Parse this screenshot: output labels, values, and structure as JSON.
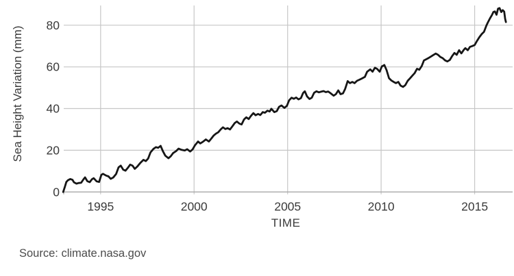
{
  "chart_data": {
    "type": "line",
    "title": "",
    "xlabel": "TIME",
    "ylabel": "Sea Height Variation (mm)",
    "source": "Source: climate.nasa.gov",
    "xlim": [
      1993.03,
      2017.03
    ],
    "ylim": [
      0,
      89.45
    ],
    "x_ticks": [
      1995,
      2000,
      2005,
      2010,
      2015
    ],
    "x_tick_labels": [
      "1995",
      "2000",
      "2005",
      "2010",
      "2015"
    ],
    "y_ticks": [
      0,
      20,
      40,
      60,
      80
    ],
    "y_tick_labels": [
      "0",
      "20",
      "40",
      "60",
      "80"
    ],
    "grid": true,
    "legend_position": "none",
    "colors": {
      "line": "#161616",
      "grid": "#c6c6c6",
      "axis": "#a8a8a8",
      "text": "#3a3a3a",
      "background": "#ffffff"
    },
    "series": [
      {
        "name": "Sea Height Variation (mm)",
        "x": [
          1993.0,
          1993.08,
          1993.17,
          1993.25,
          1993.38,
          1993.5,
          1993.58,
          1993.71,
          1993.83,
          1993.96,
          1994.08,
          1994.17,
          1994.29,
          1994.42,
          1994.54,
          1994.63,
          1994.79,
          1994.92,
          1995.04,
          1995.13,
          1995.29,
          1995.42,
          1995.54,
          1995.67,
          1995.83,
          1995.96,
          1996.08,
          1996.21,
          1996.33,
          1996.46,
          1996.58,
          1996.71,
          1996.83,
          1996.96,
          1997.13,
          1997.29,
          1997.42,
          1997.54,
          1997.67,
          1997.83,
          1997.96,
          1998.08,
          1998.21,
          1998.33,
          1998.46,
          1998.63,
          1998.75,
          1998.88,
          1999.04,
          1999.17,
          1999.33,
          1999.5,
          1999.63,
          1999.79,
          1999.92,
          2000.04,
          2000.21,
          2000.33,
          2000.46,
          2000.63,
          2000.79,
          2000.92,
          2001.04,
          2001.17,
          2001.29,
          2001.42,
          2001.54,
          2001.67,
          2001.79,
          2001.92,
          2002.04,
          2002.17,
          2002.29,
          2002.42,
          2002.54,
          2002.67,
          2002.79,
          2002.92,
          2003.04,
          2003.17,
          2003.29,
          2003.42,
          2003.54,
          2003.67,
          2003.79,
          2003.92,
          2004.04,
          2004.13,
          2004.29,
          2004.42,
          2004.54,
          2004.67,
          2004.83,
          2004.96,
          2005.08,
          2005.21,
          2005.33,
          2005.46,
          2005.58,
          2005.71,
          2005.83,
          2005.92,
          2006.04,
          2006.17,
          2006.29,
          2006.42,
          2006.54,
          2006.67,
          2006.79,
          2006.92,
          2007.04,
          2007.17,
          2007.29,
          2007.46,
          2007.58,
          2007.71,
          2007.83,
          2007.96,
          2008.08,
          2008.21,
          2008.33,
          2008.46,
          2008.58,
          2008.71,
          2008.83,
          2008.96,
          2009.13,
          2009.25,
          2009.42,
          2009.54,
          2009.67,
          2009.79,
          2009.92,
          2010.04,
          2010.17,
          2010.29,
          2010.42,
          2010.54,
          2010.67,
          2010.79,
          2010.92,
          2011.04,
          2011.17,
          2011.29,
          2011.42,
          2011.54,
          2011.67,
          2011.79,
          2011.92,
          2012.04,
          2012.17,
          2012.29,
          2012.42,
          2012.54,
          2012.67,
          2012.79,
          2012.92,
          2013.04,
          2013.17,
          2013.29,
          2013.42,
          2013.54,
          2013.67,
          2013.79,
          2013.92,
          2014.04,
          2014.17,
          2014.29,
          2014.42,
          2014.5,
          2014.63,
          2014.75,
          2014.88,
          2015.0,
          2015.13,
          2015.25,
          2015.38,
          2015.5,
          2015.63,
          2015.71,
          2015.83,
          2015.92,
          2016.0,
          2016.08,
          2016.17,
          2016.25,
          2016.33,
          2016.42,
          2016.5,
          2016.58,
          2016.63,
          2016.67
        ],
        "y": [
          0,
          2.2,
          4.8,
          5.6,
          6.2,
          5.8,
          4.6,
          4.0,
          4.3,
          4.4,
          6.0,
          7.0,
          5.2,
          4.7,
          6.1,
          6.6,
          5.1,
          4.8,
          8.2,
          8.7,
          7.9,
          7.5,
          6.3,
          6.9,
          8.6,
          11.8,
          12.6,
          10.7,
          10.2,
          11.6,
          13.1,
          12.6,
          11.1,
          12.2,
          14.0,
          15.4,
          14.8,
          16.0,
          19.0,
          20.7,
          21.5,
          21.2,
          22.1,
          19.6,
          17.4,
          16.2,
          17.1,
          18.7,
          19.6,
          20.8,
          20.2,
          19.9,
          20.5,
          19.4,
          20.4,
          22.3,
          24.2,
          23.3,
          24.0,
          25.2,
          24.2,
          25.6,
          27.0,
          28.0,
          28.6,
          30.0,
          31.0,
          30.2,
          30.6,
          30.0,
          31.4,
          33.0,
          33.8,
          32.8,
          32.4,
          34.8,
          35.8,
          35.0,
          36.5,
          37.8,
          36.8,
          37.4,
          36.9,
          38.3,
          38.0,
          39.0,
          38.6,
          39.9,
          38.3,
          38.8,
          40.8,
          41.5,
          40.3,
          41.3,
          44.0,
          45.2,
          44.7,
          45.3,
          44.4,
          45.0,
          47.5,
          48.3,
          45.8,
          44.6,
          45.2,
          47.6,
          48.3,
          47.8,
          48.1,
          48.4,
          47.9,
          48.2,
          47.4,
          46.2,
          46.9,
          48.7,
          46.9,
          47.3,
          49.5,
          53.2,
          52.2,
          52.8,
          52.2,
          53.3,
          53.8,
          54.4,
          55.2,
          57.7,
          58.8,
          57.7,
          59.6,
          59.0,
          57.7,
          60.2,
          60.9,
          58.4,
          54.6,
          53.5,
          52.8,
          52.2,
          52.8,
          51.0,
          50.4,
          51.2,
          53.3,
          54.5,
          55.8,
          57.0,
          59.1,
          58.6,
          60.4,
          63.1,
          63.7,
          64.3,
          65.0,
          65.7,
          66.4,
          65.8,
          64.7,
          64.2,
          63.1,
          62.6,
          63.3,
          65.1,
          66.7,
          65.8,
          68.0,
          66.5,
          68.2,
          69.0,
          68.0,
          69.6,
          70.0,
          70.5,
          72.5,
          74.2,
          75.8,
          76.8,
          79.9,
          81.4,
          83.4,
          84.8,
          86.3,
          86.6,
          85.0,
          87.9,
          88.2,
          86.3,
          87.2,
          86.5,
          83.0,
          81.5
        ]
      }
    ]
  }
}
